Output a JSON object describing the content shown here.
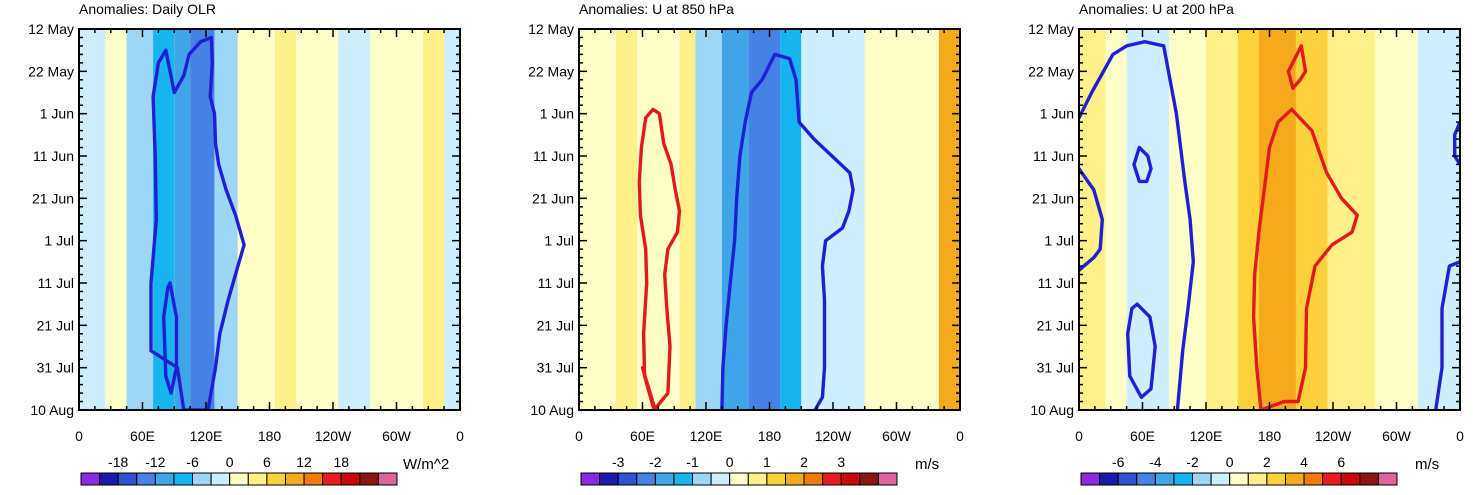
{
  "chart_data": [
    {
      "type": "heatmap",
      "title": "Anomalies: Daily OLR",
      "units": "W/m^2",
      "x_ticks": [
        "0",
        "60E",
        "120E",
        "180",
        "120W",
        "60W",
        "0"
      ],
      "y_ticks": [
        "12 May",
        "22 May",
        "1 Jun",
        "11 Jun",
        "21 Jun",
        "1 Jul",
        "11 Jul",
        "21 Jul",
        "31 Jul",
        "10 Aug"
      ],
      "xlim": [
        0,
        360
      ],
      "ylim_days": [
        0,
        90
      ],
      "colorbar_ticks": [
        "-18",
        "-12",
        "-6",
        "0",
        "6",
        "12",
        "18"
      ],
      "colorbar_colors": [
        "#8a2be2",
        "#1a1aa8",
        "#2f52d2",
        "#4682e6",
        "#3fa4e8",
        "#18b4f0",
        "#9ed6f5",
        "#cdeefc",
        "#fefec8",
        "#fff08a",
        "#fcd23c",
        "#f5aa1e",
        "#f07a0a",
        "#e61e1e",
        "#c80a0a",
        "#8c1414",
        "#dc649a"
      ],
      "colorbar_levels": [
        -24,
        -21,
        -18,
        -15,
        -12,
        -9,
        -6,
        -3,
        0,
        3,
        6,
        9,
        12,
        15,
        18,
        21,
        24
      ],
      "bands": [
        {
          "lon_start": 0,
          "lon_end": 25,
          "value": -2
        },
        {
          "lon_start": 25,
          "lon_end": 45,
          "value": 1
        },
        {
          "lon_start": 45,
          "lon_end": 70,
          "value": -5
        },
        {
          "lon_start": 70,
          "lon_end": 90,
          "value": -7
        },
        {
          "lon_start": 90,
          "lon_end": 105,
          "value": -10
        },
        {
          "lon_start": 105,
          "lon_end": 128,
          "value": -14
        },
        {
          "lon_start": 128,
          "lon_end": 150,
          "value": -5
        },
        {
          "lon_start": 150,
          "lon_end": 185,
          "value": 1
        },
        {
          "lon_start": 185,
          "lon_end": 205,
          "value": 5
        },
        {
          "lon_start": 205,
          "lon_end": 245,
          "value": 2
        },
        {
          "lon_start": 245,
          "lon_end": 275,
          "value": -2
        },
        {
          "lon_start": 275,
          "lon_end": 325,
          "value": 1
        },
        {
          "lon_start": 325,
          "lon_end": 345,
          "value": 5
        },
        {
          "lon_start": 345,
          "lon_end": 360,
          "value": -1
        }
      ],
      "contours": [
        {
          "color": "blue",
          "points": [
            [
              115,
              3
            ],
            [
              125,
              2
            ],
            [
              126,
              8
            ],
            [
              124,
              16
            ],
            [
              128,
              20
            ],
            [
              129,
              27
            ],
            [
              132,
              32
            ],
            [
              139,
              38
            ],
            [
              148,
              44
            ],
            [
              156,
              51
            ],
            [
              149,
              57
            ],
            [
              141,
              64
            ],
            [
              133,
              72
            ],
            [
              129,
              80
            ],
            [
              124,
              87
            ],
            [
              122,
              90
            ],
            [
              99,
              90
            ],
            [
              93,
              80
            ],
            [
              68,
              76
            ],
            [
              68,
              60
            ],
            [
              73,
              45
            ],
            [
              72,
              30
            ],
            [
              70,
              16
            ],
            [
              75,
              8
            ],
            [
              82,
              5
            ],
            [
              90,
              15
            ],
            [
              99,
              11
            ],
            [
              104,
              6
            ],
            [
              115,
              3
            ]
          ]
        },
        {
          "color": "blue",
          "points": [
            [
              86,
              60
            ],
            [
              92,
              68
            ],
            [
              92,
              80
            ],
            [
              87,
              86
            ],
            [
              82,
              82
            ],
            [
              80,
              68
            ],
            [
              84,
              61
            ],
            [
              86,
              60
            ]
          ]
        }
      ]
    },
    {
      "type": "heatmap",
      "title": "Anomalies: U at 850 hPa",
      "units": "m/s",
      "x_ticks": [
        "0",
        "60E",
        "120E",
        "180",
        "120W",
        "60W",
        "0"
      ],
      "y_ticks": [
        "12 May",
        "22 May",
        "1 Jun",
        "11 Jun",
        "21 Jun",
        "1 Jul",
        "11 Jul",
        "21 Jul",
        "31 Jul",
        "10 Aug"
      ],
      "xlim": [
        0,
        360
      ],
      "ylim_days": [
        0,
        90
      ],
      "colorbar_ticks": [
        "-3",
        "-2",
        "-1",
        "0",
        "1",
        "2",
        "3"
      ],
      "colorbar_colors": [
        "#8a2be2",
        "#1a1aa8",
        "#2f52d2",
        "#4682e6",
        "#3fa4e8",
        "#18b4f0",
        "#9ed6f5",
        "#cdeefc",
        "#fefec8",
        "#fff08a",
        "#fcd23c",
        "#f5aa1e",
        "#f07a0a",
        "#e61e1e",
        "#c80a0a",
        "#8c1414",
        "#dc649a"
      ],
      "colorbar_levels": [
        -4,
        -3.5,
        -3,
        -2.5,
        -2,
        -1.5,
        -1,
        -0.5,
        0,
        0.5,
        1,
        1.5,
        2,
        2.5,
        3,
        3.5,
        4
      ],
      "bands": [
        {
          "lon_start": 0,
          "lon_end": 35,
          "value": 0.2
        },
        {
          "lon_start": 35,
          "lon_end": 55,
          "value": 0.7
        },
        {
          "lon_start": 55,
          "lon_end": 95,
          "value": 0.3
        },
        {
          "lon_start": 95,
          "lon_end": 110,
          "value": 0.7
        },
        {
          "lon_start": 110,
          "lon_end": 135,
          "value": -0.7
        },
        {
          "lon_start": 135,
          "lon_end": 160,
          "value": -1.8
        },
        {
          "lon_start": 160,
          "lon_end": 190,
          "value": -2.2
        },
        {
          "lon_start": 190,
          "lon_end": 210,
          "value": -1.2
        },
        {
          "lon_start": 210,
          "lon_end": 270,
          "value": -0.3
        },
        {
          "lon_start": 270,
          "lon_end": 310,
          "value": 0.2
        },
        {
          "lon_start": 310,
          "lon_end": 340,
          "value": 0.3
        },
        {
          "lon_start": 340,
          "lon_end": 360,
          "value": 1.6
        }
      ],
      "contours": [
        {
          "color": "red",
          "points": [
            [
              70,
              19
            ],
            [
              76,
              20
            ],
            [
              80,
              27
            ],
            [
              87,
              32
            ],
            [
              91,
              38
            ],
            [
              95,
              43
            ],
            [
              93,
              48
            ],
            [
              84,
              52
            ],
            [
              81,
              58
            ],
            [
              83,
              66
            ],
            [
              86,
              75
            ],
            [
              84,
              86
            ],
            [
              71,
              90
            ],
            [
              62,
              82
            ],
            [
              61,
              72
            ],
            [
              64,
              60
            ],
            [
              63,
              52
            ],
            [
              58,
              44
            ],
            [
              57,
              36
            ],
            [
              59,
              28
            ],
            [
              63,
              21
            ],
            [
              70,
              19
            ]
          ]
        },
        {
          "color": "red",
          "points": [
            [
              60,
              80
            ],
            [
              72,
              90
            ]
          ]
        },
        {
          "color": "blue",
          "points": [
            [
              135,
              90
            ],
            [
              136,
              80
            ],
            [
              139,
              70
            ],
            [
              143,
              60
            ],
            [
              147,
              50
            ],
            [
              149,
              40
            ],
            [
              152,
              30
            ],
            [
              157,
              22
            ],
            [
              163,
              15
            ],
            [
              173,
              12
            ],
            [
              185,
              6
            ],
            [
              199,
              7
            ],
            [
              205,
              12
            ],
            [
              208,
              22
            ],
            [
              222,
              26
            ],
            [
              256,
              34
            ],
            [
              259,
              38
            ],
            [
              255,
              43
            ],
            [
              249,
              47
            ],
            [
              233,
              50
            ],
            [
              230,
              56
            ],
            [
              232,
              64
            ],
            [
              232,
              74
            ],
            [
              232,
              80
            ],
            [
              230,
              87
            ],
            [
              223,
              90
            ]
          ]
        }
      ]
    },
    {
      "type": "heatmap",
      "title": "Anomalies: U at 200 hPa",
      "units": "m/s",
      "x_ticks": [
        "0",
        "60E",
        "120E",
        "180",
        "120W",
        "60W",
        "0"
      ],
      "y_ticks": [
        "12 May",
        "22 May",
        "1 Jun",
        "11 Jun",
        "21 Jun",
        "1 Jul",
        "11 Jul",
        "21 Jul",
        "31 Jul",
        "10 Aug"
      ],
      "xlim": [
        0,
        360
      ],
      "ylim_days": [
        0,
        90
      ],
      "colorbar_ticks": [
        "-6",
        "-4",
        "-2",
        "0",
        "2",
        "4",
        "6"
      ],
      "colorbar_colors": [
        "#8a2be2",
        "#1a1aa8",
        "#2f52d2",
        "#4682e6",
        "#3fa4e8",
        "#18b4f0",
        "#9ed6f5",
        "#cdeefc",
        "#fefec8",
        "#fff08a",
        "#fcd23c",
        "#f5aa1e",
        "#f07a0a",
        "#e61e1e",
        "#c80a0a",
        "#8c1414",
        "#dc649a"
      ],
      "colorbar_levels": [
        -8,
        -7,
        -6,
        -5,
        -4,
        -3,
        -2,
        -1,
        0,
        1,
        2,
        3,
        4,
        5,
        6,
        7,
        8
      ],
      "bands": [
        {
          "lon_start": 0,
          "lon_end": 25,
          "value": 1.8
        },
        {
          "lon_start": 25,
          "lon_end": 45,
          "value": 0.8
        },
        {
          "lon_start": 45,
          "lon_end": 85,
          "value": -0.8
        },
        {
          "lon_start": 85,
          "lon_end": 120,
          "value": 0.6
        },
        {
          "lon_start": 120,
          "lon_end": 150,
          "value": 1.4
        },
        {
          "lon_start": 150,
          "lon_end": 170,
          "value": 2.3
        },
        {
          "lon_start": 170,
          "lon_end": 205,
          "value": 3.6
        },
        {
          "lon_start": 205,
          "lon_end": 235,
          "value": 2.4
        },
        {
          "lon_start": 235,
          "lon_end": 280,
          "value": 1.2
        },
        {
          "lon_start": 280,
          "lon_end": 320,
          "value": 0.4
        },
        {
          "lon_start": 320,
          "lon_end": 360,
          "value": -0.6
        }
      ],
      "contours": [
        {
          "color": "red",
          "points": [
            [
              198,
              10
            ],
            [
              210,
              4
            ],
            [
              214,
              10
            ],
            [
              209,
              12
            ],
            [
              202,
              14
            ],
            [
              198,
              10
            ]
          ]
        },
        {
          "color": "red",
          "points": [
            [
              172,
              90
            ],
            [
              168,
              80
            ],
            [
              165,
              68
            ],
            [
              166,
              58
            ],
            [
              170,
              48
            ],
            [
              175,
              38
            ],
            [
              180,
              28
            ],
            [
              188,
              22
            ],
            [
              201,
              19
            ],
            [
              220,
              24
            ],
            [
              234,
              34
            ],
            [
              248,
              40
            ],
            [
              263,
              44
            ],
            [
              258,
              48
            ],
            [
              239,
              51
            ],
            [
              223,
              56
            ],
            [
              215,
              66
            ],
            [
              214,
              80
            ],
            [
              207,
              88
            ],
            [
              194,
              88
            ],
            [
              172,
              90
            ]
          ]
        },
        {
          "color": "blue",
          "points": [
            [
              0,
              21
            ],
            [
              12,
              15
            ],
            [
              32,
              6
            ],
            [
              45,
              4
            ],
            [
              62,
              3
            ],
            [
              80,
              4
            ],
            [
              92,
              20
            ],
            [
              100,
              36
            ],
            [
              105,
              45
            ],
            [
              108,
              55
            ],
            [
              103,
              66
            ],
            [
              98,
              76
            ],
            [
              93,
              90
            ]
          ]
        },
        {
          "color": "blue",
          "points": [
            [
              0,
              33
            ],
            [
              14,
              38
            ],
            [
              22,
              45
            ],
            [
              20,
              52
            ],
            [
              14,
              54
            ],
            [
              0,
              57
            ]
          ]
        },
        {
          "color": "blue",
          "points": [
            [
              52,
              32
            ],
            [
              57,
              28
            ],
            [
              65,
              30
            ],
            [
              68,
              33
            ],
            [
              64,
              36
            ],
            [
              57,
              36
            ],
            [
              52,
              32
            ]
          ]
        },
        {
          "color": "blue",
          "points": [
            [
              55,
              65
            ],
            [
              67,
              68
            ],
            [
              72,
              75
            ],
            [
              68,
              85
            ],
            [
              59,
              87
            ],
            [
              48,
              82
            ],
            [
              46,
              72
            ],
            [
              50,
              66
            ],
            [
              55,
              65
            ]
          ]
        },
        {
          "color": "blue",
          "points": [
            [
              360,
              55
            ],
            [
              350,
              56
            ],
            [
              343,
              66
            ],
            [
              343,
              80
            ],
            [
              337,
              90
            ]
          ]
        },
        {
          "color": "blue",
          "points": [
            [
              360,
              22
            ],
            [
              355,
              25
            ],
            [
              355,
              30
            ],
            [
              360,
              32
            ]
          ]
        }
      ]
    }
  ]
}
